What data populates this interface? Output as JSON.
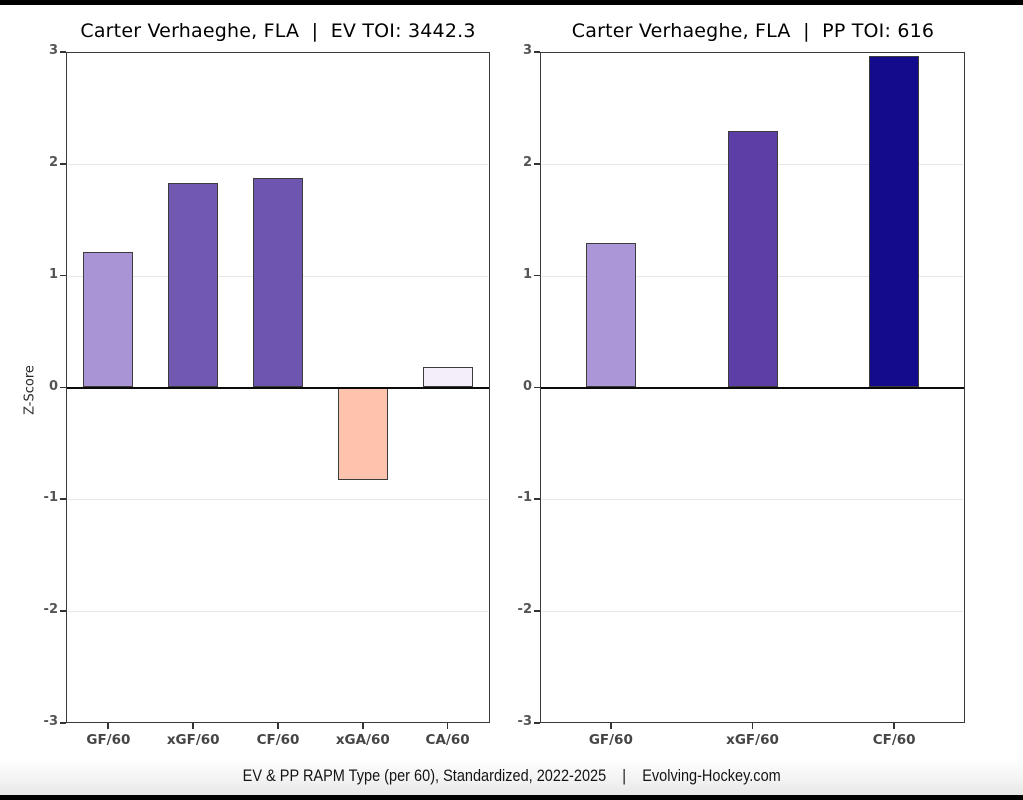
{
  "page": {
    "caption": "EV & PP RAPM Type (per 60), Standardized, 2022-2025    |    Evolving-Hockey.com"
  },
  "chart_data": [
    {
      "type": "bar",
      "title": "Carter Verhaeghe, FLA  |  EV TOI: 3442.3",
      "xlabel": "",
      "ylabel": "Z-Score",
      "ylim": [
        -3,
        3
      ],
      "yticks": [
        3,
        2,
        1,
        0,
        -1,
        -2,
        -3
      ],
      "grid": true,
      "legend": "none",
      "categories": [
        "GF/60",
        "xGF/60",
        "CF/60",
        "xGA/60",
        "CA/60"
      ],
      "values": [
        1.21,
        1.83,
        1.87,
        -0.83,
        0.18
      ],
      "bar_colors": [
        "#a995d6",
        "#7158b1",
        "#6e55b0",
        "#fdc3ad",
        "#f4eef9"
      ]
    },
    {
      "type": "bar",
      "title": "Carter Verhaeghe, FLA  |  PP TOI: 616",
      "xlabel": "",
      "ylabel": "",
      "ylim": [
        -3,
        3
      ],
      "yticks": [
        3,
        2,
        1,
        0,
        -1,
        -2,
        -3
      ],
      "grid": true,
      "legend": "none",
      "categories": [
        "GF/60",
        "xGF/60",
        "CF/60"
      ],
      "values": [
        1.29,
        2.29,
        2.96
      ],
      "bar_colors": [
        "#ab97d7",
        "#5c3ea6",
        "#130b8c"
      ]
    }
  ]
}
